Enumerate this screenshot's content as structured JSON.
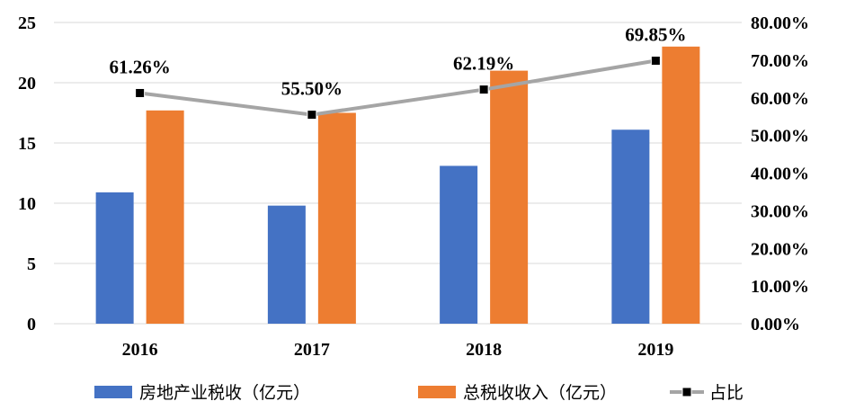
{
  "chart_data": {
    "type": "bar",
    "categories": [
      "2016",
      "2017",
      "2018",
      "2019"
    ],
    "series": [
      {
        "name": "房地产业税收（亿元）",
        "kind": "bar",
        "axis": "left",
        "color": "#4472C4",
        "values": [
          10.9,
          9.8,
          13.1,
          16.1
        ]
      },
      {
        "name": "总税收收入（亿元）",
        "kind": "bar",
        "axis": "left",
        "color": "#ED7D31",
        "values": [
          17.7,
          17.5,
          21.0,
          23.0
        ]
      },
      {
        "name": "占比",
        "kind": "line",
        "axis": "right",
        "color": "#A5A5A5",
        "marker_color": "#000000",
        "values": [
          0.6126,
          0.555,
          0.6219,
          0.6985
        ],
        "labels": [
          "61.26%",
          "55.50%",
          "62.19%",
          "69.85%"
        ]
      }
    ],
    "y_left": {
      "min": 0,
      "max": 25,
      "ticks": [
        "0",
        "5",
        "10",
        "15",
        "20",
        "25"
      ]
    },
    "y_right": {
      "min": 0,
      "max": 0.8,
      "ticks": [
        "0.00%",
        "10.00%",
        "20.00%",
        "30.00%",
        "40.00%",
        "50.00%",
        "60.00%",
        "70.00%",
        "80.00%"
      ]
    },
    "grid": true,
    "legend_position": "bottom"
  }
}
